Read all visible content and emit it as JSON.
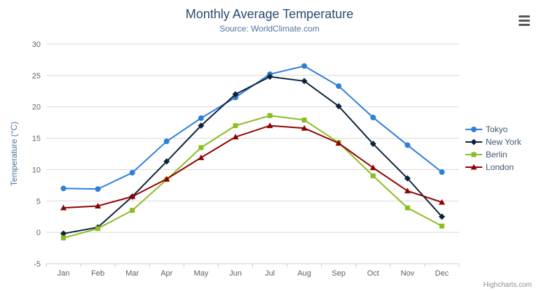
{
  "chart_data": {
    "type": "line",
    "title": "Monthly Average Temperature",
    "subtitle": "Source: WorldClimate.com",
    "xlabel": "",
    "ylabel": "Temperature (°C)",
    "ylim": [
      -5,
      30
    ],
    "ytick_interval": 5,
    "grid": true,
    "legend_position": "right",
    "categories": [
      "Jan",
      "Feb",
      "Mar",
      "Apr",
      "May",
      "Jun",
      "Jul",
      "Aug",
      "Sep",
      "Oct",
      "Nov",
      "Dec"
    ],
    "series": [
      {
        "name": "Tokyo",
        "color": "#2f7ed8",
        "marker": "circle",
        "values": [
          7.0,
          6.9,
          9.5,
          14.5,
          18.2,
          21.5,
          25.2,
          26.5,
          23.3,
          18.3,
          13.9,
          9.6
        ]
      },
      {
        "name": "New York",
        "color": "#0d233a",
        "marker": "diamond",
        "values": [
          -0.2,
          0.8,
          5.7,
          11.3,
          17.0,
          22.0,
          24.8,
          24.1,
          20.1,
          14.1,
          8.6,
          2.5
        ]
      },
      {
        "name": "Berlin",
        "color": "#8bbc21",
        "marker": "square",
        "values": [
          -0.9,
          0.6,
          3.5,
          8.4,
          13.5,
          17.0,
          18.6,
          17.9,
          14.3,
          9.0,
          3.9,
          1.0
        ]
      },
      {
        "name": "London",
        "color": "#910000",
        "marker": "triangle",
        "values": [
          3.9,
          4.2,
          5.7,
          8.5,
          11.9,
          15.2,
          17.0,
          16.6,
          14.2,
          10.3,
          6.6,
          4.8
        ]
      }
    ],
    "grid_color": "#d8d8d8",
    "axis_line_color": "#c0d0e0"
  },
  "icons": {
    "context_menu": "hamburger-menu"
  },
  "credit": {
    "label": "Highcharts.com"
  }
}
